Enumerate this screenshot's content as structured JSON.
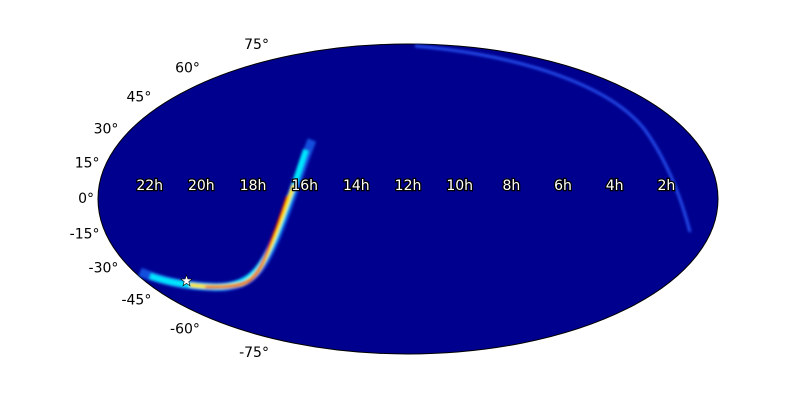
{
  "chart_data": {
    "type": "skymap",
    "projection": "mollweide",
    "background_color": "#00008f",
    "dec_ticks": [
      {
        "value": 75,
        "label": "75°"
      },
      {
        "value": 60,
        "label": "60°"
      },
      {
        "value": 45,
        "label": "45°"
      },
      {
        "value": 30,
        "label": "30°"
      },
      {
        "value": 15,
        "label": "15°"
      },
      {
        "value": 0,
        "label": "0°"
      },
      {
        "value": -15,
        "label": "-15°"
      },
      {
        "value": -30,
        "label": "-30°"
      },
      {
        "value": -45,
        "label": "-45°"
      },
      {
        "value": -60,
        "label": "-60°"
      },
      {
        "value": -75,
        "label": "-75°"
      }
    ],
    "ra_ticks": [
      {
        "value": 22,
        "label": "22h"
      },
      {
        "value": 20,
        "label": "20h"
      },
      {
        "value": 18,
        "label": "18h"
      },
      {
        "value": 16,
        "label": "16h"
      },
      {
        "value": 14,
        "label": "14h"
      },
      {
        "value": 12,
        "label": "12h"
      },
      {
        "value": 10,
        "label": "10h"
      },
      {
        "value": 8,
        "label": "8h"
      },
      {
        "value": 6,
        "label": "6h"
      },
      {
        "value": 4,
        "label": "4h"
      },
      {
        "value": 2,
        "label": "2h"
      }
    ],
    "marker": {
      "ra": 22.1,
      "dec": -39.8,
      "color": "#ffffff"
    }
  }
}
